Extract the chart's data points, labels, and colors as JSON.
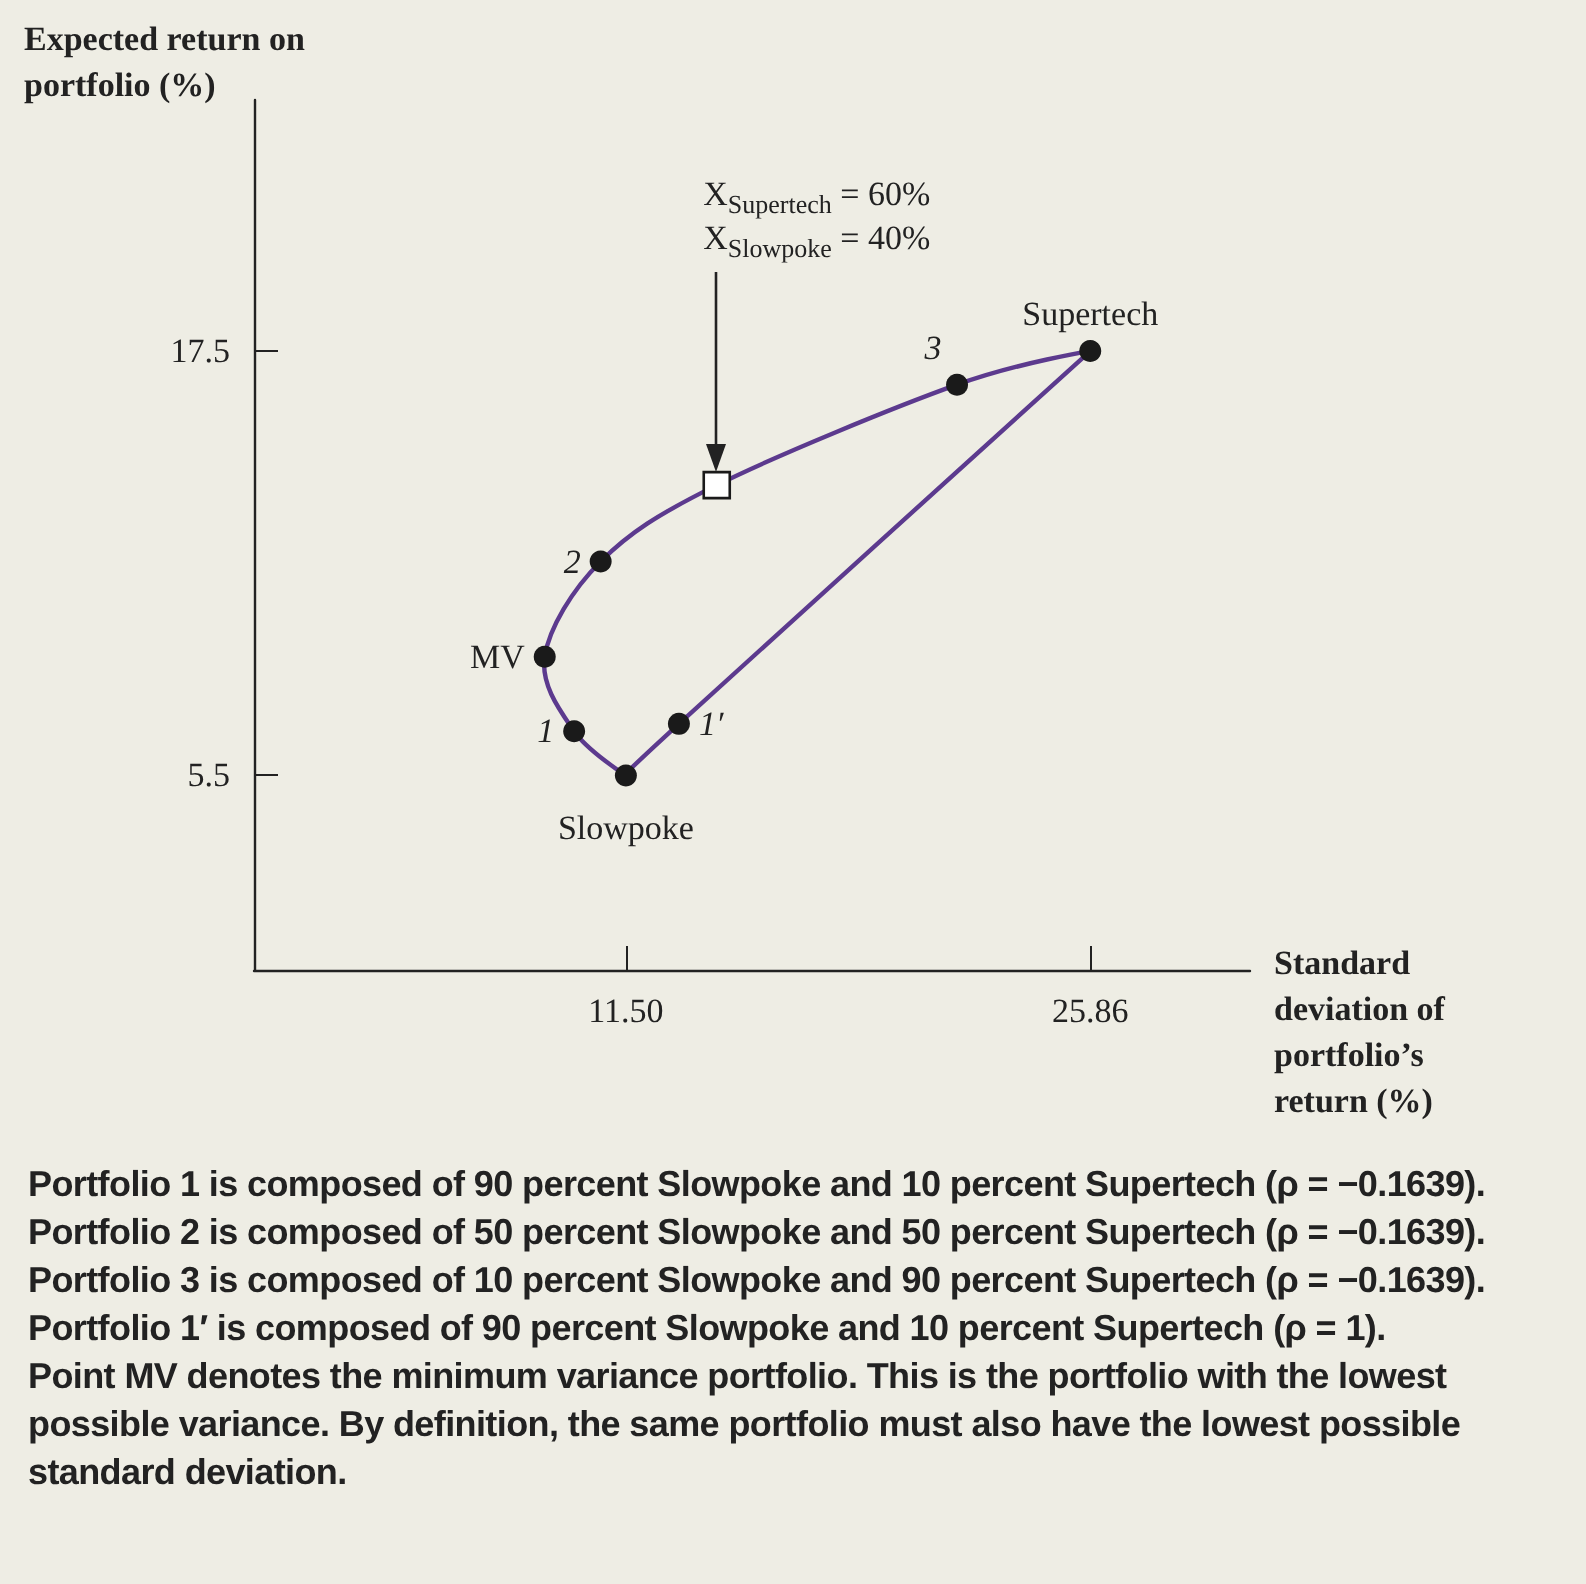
{
  "chart_data": {
    "type": "scatter",
    "xlabel": "Standard deviation of portfolio’s return (%)",
    "ylabel": "Expected return on portfolio (%)",
    "xlim": [
      0,
      30.8
    ],
    "ylim": [
      0,
      24.6
    ],
    "xticks": [
      {
        "value": 11.5,
        "label": "11.50"
      },
      25.86
    ],
    "yticks": [
      5.5,
      17.5
    ],
    "grid": false,
    "series": [
      {
        "color": "#1a1a1a",
        "marker": "circle",
        "x": [
          11.5,
          9.9,
          8.99,
          10.72,
          21.74,
          25.86,
          13.14
        ],
        "values": [
          5.5,
          6.75,
          8.86,
          11.55,
          16.55,
          17.5,
          6.96
        ]
      },
      {
        "color": "#ffffff",
        "marker": "square",
        "x": [
          14.31
        ],
        "values": [
          13.71
        ]
      }
    ],
    "annotations": [
      {
        "text": "Slowpoke",
        "x": 11.5,
        "y": 5.5
      },
      {
        "text": "Supertech",
        "x": 25.86,
        "y": 17.5
      },
      {
        "text": "1",
        "x": 9.9,
        "y": 6.75
      },
      {
        "text": "MV",
        "x": 8.99,
        "y": 8.86
      },
      {
        "text": "2",
        "x": 10.72,
        "y": 11.55
      },
      {
        "text": "3",
        "x": 21.74,
        "y": 16.55
      },
      {
        "text": "1′",
        "x": 13.14,
        "y": 6.96
      },
      "X$_{Supertech}$ = 60%",
      "X$_{Slowpoke}$ = 40%",
      "Portfolio 1 is composed of 90 percent Slowpoke and 10 percent Supertech (ρ = −0.1639).",
      "Portfolio 2 is composed of 50 percent Slowpoke and 50 percent Supertech (ρ = −0.1639).",
      "Portfolio 3 is composed of 10 percent Slowpoke and 90 percent Supertech (ρ = −0.1639).",
      "Portfolio 1′ is composed of 90 percent Slowpoke and 10 percent Supertech (ρ = 1).",
      "Point MV denotes the minimum variance portfolio. This is the portfolio with the lowest possible variance. By definition, the same portfolio must also have the lowest possible standard deviation."
    ]
  }
}
